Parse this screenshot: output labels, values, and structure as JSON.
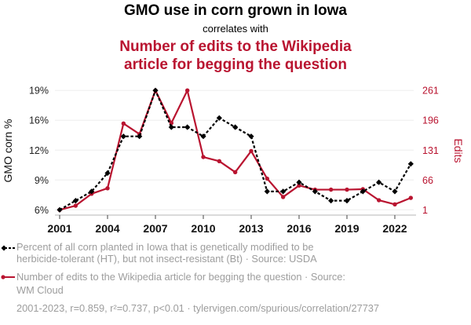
{
  "title": {
    "line1": "GMO use in corn grown in Iowa",
    "connector": "correlates with",
    "line2a": "Number of edits to the Wikipedia",
    "line2b": "article for begging the question"
  },
  "colors": {
    "series1": "#000000",
    "series2": "#b91430",
    "legend_text": "#9d9d9d",
    "gridline": "#eeeeee"
  },
  "legend": {
    "series1": {
      "icon": "dashed-line-diamond-marker",
      "lines": [
        "Percent of all corn planted in Iowa that is genetically modified to be",
        "herbicide-tolerant (HT), but not insect-resistant (Bt) · Source: USDA"
      ]
    },
    "series2": {
      "icon": "solid-line-circle-marker",
      "lines": [
        "Number of edits to the Wikipedia article for begging the question · Source:",
        "WM Cloud"
      ]
    }
  },
  "footer": "2001-2023, r=0.859, r²=0.737, p<0.01 · tylervigen.com/spurious/correlation/27737",
  "chart_data": {
    "type": "line",
    "title": "GMO use in corn grown in Iowa correlates with Number of edits to the Wikipedia article for begging the question",
    "x": [
      2001,
      2002,
      2003,
      2004,
      2005,
      2006,
      2007,
      2008,
      2009,
      2010,
      2011,
      2012,
      2013,
      2014,
      2015,
      2016,
      2017,
      2018,
      2019,
      2020,
      2021,
      2022,
      2023
    ],
    "x_ticks": [
      2001,
      2004,
      2007,
      2010,
      2013,
      2016,
      2019,
      2022
    ],
    "x_tick_labels": [
      "2001",
      "2004",
      "2007",
      "2010",
      "2013",
      "2016",
      "2019",
      "2022"
    ],
    "xlabel": "",
    "y_left": {
      "label": "GMO corn %",
      "range": [
        6,
        19
      ],
      "ticks": [
        6,
        9.25,
        12.5,
        15.75,
        19
      ],
      "tick_labels": [
        "6%",
        "9%",
        "12%",
        "16%",
        "19%"
      ]
    },
    "y_right": {
      "label": "Edits",
      "range": [
        1,
        261
      ],
      "ticks": [
        1,
        66,
        131,
        196,
        261
      ],
      "tick_labels": [
        "1",
        "66",
        "131",
        "196",
        "261"
      ]
    },
    "series": [
      {
        "name": "Percent of all corn planted in Iowa that is genetically modified to be herbicide-tolerant (HT), but not insect-resistant (Bt)",
        "axis": "left",
        "style": "dashed",
        "marker": "diamond",
        "color": "#000000",
        "values": [
          6,
          7,
          8,
          10,
          14,
          14,
          19,
          15,
          15,
          14,
          16,
          15,
          14,
          8,
          8,
          9,
          8,
          7,
          7,
          8,
          9,
          8,
          11
        ]
      },
      {
        "name": "Number of edits to the Wikipedia article for begging the question",
        "axis": "right",
        "style": "solid",
        "marker": "circle",
        "color": "#b91430",
        "values": [
          1,
          10,
          36,
          48,
          189,
          166,
          261,
          190,
          261,
          116,
          107,
          83,
          129,
          69,
          29,
          54,
          45,
          45,
          45,
          46,
          22,
          13,
          27
        ]
      }
    ],
    "grid": true,
    "legend_position": "bottom"
  }
}
